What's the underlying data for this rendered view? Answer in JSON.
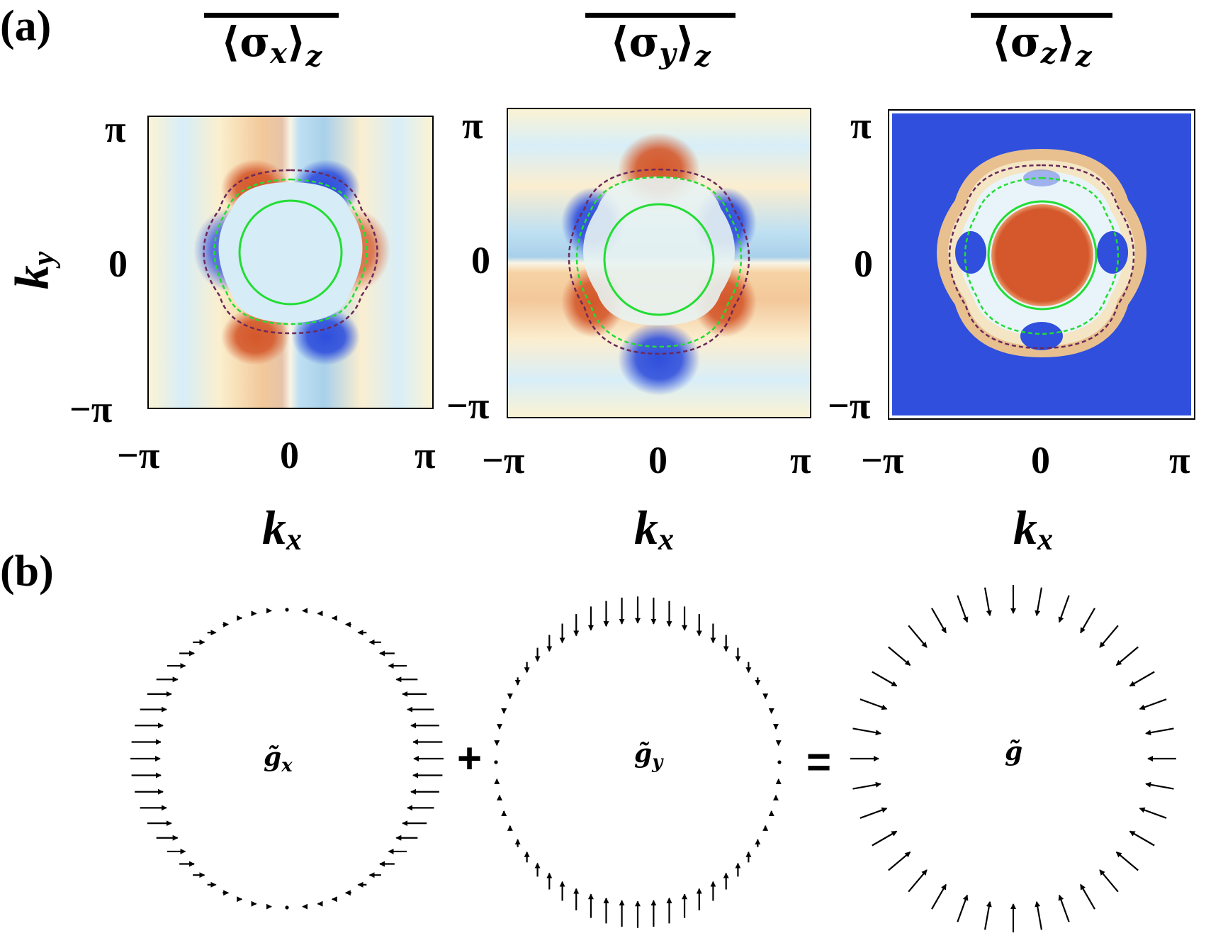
{
  "panel_a": {
    "label": "(a)",
    "plots": [
      {
        "title": "⟨σx⟩z",
        "title_base": "⟨σ",
        "title_sub": "x",
        "title_close": "⟩",
        "title_z": "z",
        "xlabel": "kx",
        "ylabel": "ky"
      },
      {
        "title": "⟨σy⟩z",
        "title_base": "⟨σ",
        "title_sub": "y",
        "title_close": "⟩",
        "title_z": "z",
        "xlabel": "kx",
        "ylabel": ""
      },
      {
        "title": "⟨σz⟩z",
        "title_base": "⟨σ",
        "title_sub": "z",
        "title_close": "⟩",
        "title_z": "z",
        "xlabel": "kx",
        "ylabel": ""
      }
    ],
    "x_ticks": [
      "−π",
      "0",
      "π"
    ],
    "y_ticks": [
      "π",
      "0",
      "−π"
    ],
    "xlabel": "k",
    "xlabel_sub": "x",
    "ylabel": "k",
    "ylabel_sub": "y",
    "colors": {
      "red": "#d4582b",
      "blue": "#2f4fdc",
      "cream": "#fbf3d4",
      "lightblue": "#cfe9f5",
      "green": "#22dd33",
      "purple": "#6b2a5a"
    }
  },
  "panel_b": {
    "label": "(b)",
    "vector_labels": {
      "gx": "g̃x",
      "gx_base": "g̃",
      "gx_sub": "x",
      "gy_base": "g̃",
      "gy_sub": "y",
      "g": "g̃"
    },
    "plus": "+",
    "equals": "="
  },
  "chart_data": [
    {
      "type": "heatmap",
      "title": "⟨σx⟩z",
      "xlabel": "kx",
      "ylabel": "ky",
      "xlim": [
        "−π",
        "π"
      ],
      "ylim": [
        "−π",
        "π"
      ]
    },
    {
      "type": "heatmap",
      "title": "⟨σy⟩z",
      "xlabel": "kx",
      "ylabel": "",
      "xlim": [
        "−π",
        "π"
      ],
      "ylim": [
        "−π",
        "π"
      ]
    },
    {
      "type": "heatmap",
      "title": "⟨σz⟩z",
      "xlabel": "kx",
      "ylabel": "",
      "xlim": [
        "−π",
        "π"
      ],
      "ylim": [
        "−π",
        "π"
      ]
    }
  ]
}
